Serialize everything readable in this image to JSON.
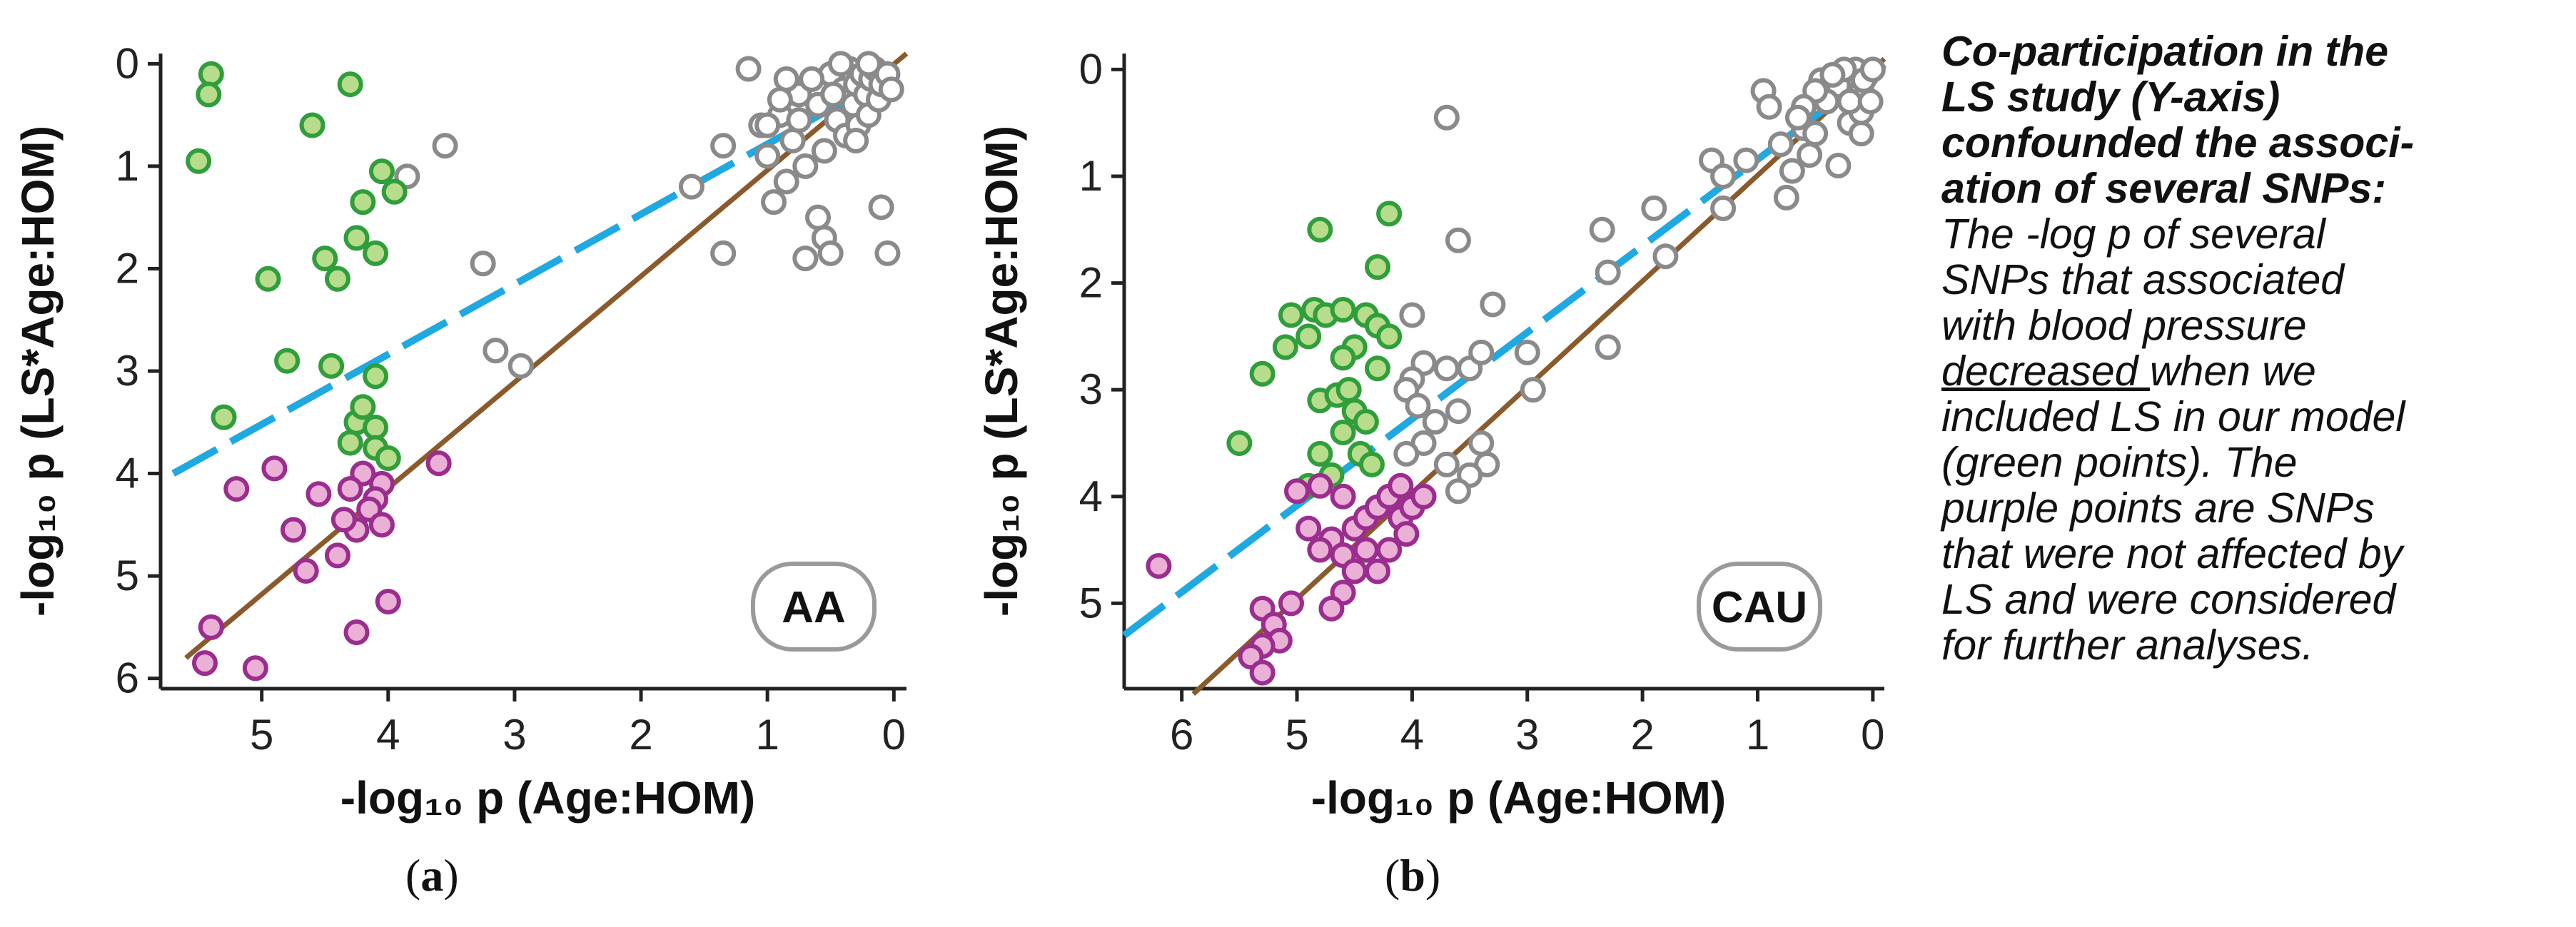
{
  "colors": {
    "green_fill": "#b6dc8c",
    "green_stroke": "#2f9e3b",
    "purple_fill": "#eab0d6",
    "purple_stroke": "#9b2d8e",
    "gray_stroke": "#8a8a8a",
    "identity_line": "#8b5a2b",
    "fit_line": "#1fa9e1"
  },
  "chart_data": [
    {
      "type": "scatter",
      "panel_label": "(a)",
      "panel_letter": "a",
      "badge": "AA",
      "xlabel": "-log₁₀ p (Age:HOM)",
      "ylabel": "-log₁₀ p (LS*Age:HOM)",
      "xlim": [
        5.8,
        -0.1
      ],
      "ylim": [
        6.1,
        -0.1
      ],
      "x_ticks": [
        5,
        4,
        3,
        2,
        1,
        0
      ],
      "y_ticks": [
        0,
        1,
        2,
        3,
        4,
        5,
        6
      ],
      "lines": [
        {
          "name": "identity",
          "points": [
            [
              5.6,
              5.8
            ],
            [
              -0.1,
              -0.1
            ]
          ]
        },
        {
          "name": "fit",
          "points": [
            [
              5.7,
              4.0
            ],
            [
              0.0,
              0.1
            ]
          ]
        }
      ],
      "series": [
        {
          "name": "green",
          "points": [
            [
              5.4,
              0.1
            ],
            [
              5.42,
              0.3
            ],
            [
              5.5,
              0.95
            ],
            [
              4.6,
              0.6
            ],
            [
              4.3,
              0.2
            ],
            [
              4.05,
              1.05
            ],
            [
              3.95,
              1.25
            ],
            [
              4.2,
              1.35
            ],
            [
              4.25,
              1.7
            ],
            [
              4.1,
              1.85
            ],
            [
              4.5,
              1.9
            ],
            [
              4.4,
              2.1
            ],
            [
              4.95,
              2.1
            ],
            [
              5.3,
              3.45
            ],
            [
              4.8,
              2.9
            ],
            [
              4.45,
              2.95
            ],
            [
              4.1,
              3.05
            ],
            [
              4.25,
              3.5
            ],
            [
              4.2,
              3.35
            ],
            [
              4.1,
              3.55
            ],
            [
              4.3,
              3.7
            ],
            [
              4.1,
              3.75
            ],
            [
              4.0,
              3.85
            ]
          ]
        },
        {
          "name": "purple",
          "points": [
            [
              4.2,
              4.0
            ],
            [
              4.05,
              4.1
            ],
            [
              4.1,
              4.25
            ],
            [
              4.3,
              4.15
            ],
            [
              4.15,
              4.35
            ],
            [
              4.25,
              4.55
            ],
            [
              4.05,
              4.5
            ],
            [
              4.35,
              4.45
            ],
            [
              4.55,
              4.2
            ],
            [
              4.9,
              3.95
            ],
            [
              5.2,
              4.15
            ],
            [
              4.75,
              4.55
            ],
            [
              4.4,
              4.8
            ],
            [
              4.65,
              4.95
            ],
            [
              3.6,
              3.9
            ],
            [
              4.0,
              5.25
            ],
            [
              4.25,
              5.55
            ],
            [
              5.4,
              5.5
            ],
            [
              5.45,
              5.85
            ],
            [
              5.05,
              5.9
            ]
          ]
        },
        {
          "name": "gray",
          "points": [
            [
              3.85,
              1.1
            ],
            [
              3.55,
              0.8
            ],
            [
              3.25,
              1.95
            ],
            [
              3.15,
              2.8
            ],
            [
              2.95,
              2.95
            ],
            [
              1.6,
              1.2
            ],
            [
              1.35,
              0.8
            ],
            [
              1.0,
              0.9
            ],
            [
              1.35,
              1.85
            ],
            [
              0.9,
              0.5
            ],
            [
              0.75,
              0.3
            ],
            [
              0.6,
              1.5
            ],
            [
              0.55,
              1.7
            ],
            [
              0.5,
              1.85
            ],
            [
              0.7,
              1.9
            ],
            [
              0.05,
              1.85
            ],
            [
              0.1,
              1.4
            ],
            [
              1.15,
              0.05
            ],
            [
              1.05,
              0.6
            ],
            [
              0.85,
              0.15
            ],
            [
              0.8,
              0.75
            ],
            [
              0.7,
              1.0
            ],
            [
              0.6,
              0.4
            ],
            [
              0.55,
              0.85
            ],
            [
              0.5,
              0.1
            ],
            [
              0.45,
              0.55
            ],
            [
              0.4,
              0.25
            ],
            [
              0.38,
              0.7
            ],
            [
              0.35,
              0.05
            ],
            [
              0.32,
              0.4
            ],
            [
              0.3,
              0.2
            ],
            [
              0.28,
              0.6
            ],
            [
              0.25,
              0.1
            ],
            [
              0.22,
              0.3
            ],
            [
              0.2,
              0.5
            ],
            [
              0.18,
              0.15
            ],
            [
              0.15,
              0.05
            ],
            [
              0.12,
              0.35
            ],
            [
              0.1,
              0.2
            ],
            [
              0.05,
              0.1
            ],
            [
              0.02,
              0.25
            ],
            [
              0.65,
              0.15
            ],
            [
              0.48,
              0.3
            ],
            [
              0.42,
              0.0
            ],
            [
              0.2,
              0.0
            ],
            [
              0.3,
              0.75
            ],
            [
              0.9,
              0.35
            ],
            [
              1.0,
              0.6
            ],
            [
              0.75,
              0.55
            ],
            [
              0.85,
              1.15
            ],
            [
              0.95,
              1.35
            ]
          ]
        }
      ]
    },
    {
      "type": "scatter",
      "panel_label": "(b)",
      "panel_letter": "b",
      "badge": "CAU",
      "xlabel": "-log₁₀ p (Age:HOM)",
      "ylabel": "-log₁₀ p (LS*Age:HOM)",
      "xlim": [
        6.5,
        -0.1
      ],
      "ylim": [
        5.8,
        -0.15
      ],
      "x_ticks": [
        6,
        5,
        4,
        3,
        2,
        1,
        0
      ],
      "y_ticks": [
        0,
        1,
        2,
        3,
        4,
        5
      ],
      "lines": [
        {
          "name": "identity",
          "points": [
            [
              5.9,
              5.85
            ],
            [
              -0.1,
              -0.1
            ]
          ]
        },
        {
          "name": "fit",
          "points": [
            [
              6.5,
              5.3
            ],
            [
              -0.1,
              -0.05
            ]
          ]
        }
      ],
      "series": [
        {
          "name": "green",
          "points": [
            [
              4.8,
              1.5
            ],
            [
              4.2,
              1.35
            ],
            [
              4.3,
              1.85
            ],
            [
              4.85,
              2.25
            ],
            [
              4.75,
              2.3
            ],
            [
              5.05,
              2.3
            ],
            [
              4.6,
              2.25
            ],
            [
              4.4,
              2.3
            ],
            [
              4.3,
              2.4
            ],
            [
              4.2,
              2.5
            ],
            [
              4.5,
              2.6
            ],
            [
              4.6,
              2.7
            ],
            [
              4.9,
              2.5
            ],
            [
              5.1,
              2.6
            ],
            [
              5.3,
              2.85
            ],
            [
              4.8,
              3.1
            ],
            [
              4.65,
              3.05
            ],
            [
              4.5,
              3.2
            ],
            [
              4.4,
              3.3
            ],
            [
              4.6,
              3.4
            ],
            [
              5.5,
              3.5
            ],
            [
              4.8,
              3.6
            ],
            [
              4.9,
              3.9
            ],
            [
              4.7,
              3.8
            ],
            [
              4.45,
              3.6
            ],
            [
              4.35,
              3.7
            ],
            [
              4.55,
              3.0
            ],
            [
              4.3,
              2.8
            ]
          ]
        },
        {
          "name": "purple",
          "points": [
            [
              6.2,
              4.65
            ],
            [
              5.3,
              5.05
            ],
            [
              5.2,
              5.2
            ],
            [
              5.05,
              5.0
            ],
            [
              5.15,
              5.35
            ],
            [
              5.3,
              5.4
            ],
            [
              5.4,
              5.5
            ],
            [
              5.3,
              5.65
            ],
            [
              5.0,
              3.95
            ],
            [
              4.8,
              3.9
            ],
            [
              4.6,
              4.0
            ],
            [
              4.9,
              4.3
            ],
            [
              4.7,
              4.4
            ],
            [
              4.6,
              4.55
            ],
            [
              4.5,
              4.3
            ],
            [
              4.4,
              4.2
            ],
            [
              4.3,
              4.1
            ],
            [
              4.2,
              4.0
            ],
            [
              4.1,
              4.2
            ],
            [
              4.0,
              4.1
            ],
            [
              3.9,
              4.0
            ],
            [
              4.1,
              3.9
            ],
            [
              4.5,
              4.7
            ],
            [
              4.6,
              4.9
            ],
            [
              4.7,
              5.05
            ],
            [
              4.3,
              4.7
            ],
            [
              4.2,
              4.5
            ],
            [
              4.4,
              4.5
            ],
            [
              4.8,
              4.5
            ],
            [
              4.05,
              4.35
            ]
          ]
        },
        {
          "name": "gray",
          "points": [
            [
              3.7,
              0.45
            ],
            [
              4.0,
              2.3
            ],
            [
              3.6,
              1.6
            ],
            [
              3.3,
              2.2
            ],
            [
              3.5,
              2.8
            ],
            [
              3.7,
              2.8
            ],
            [
              3.9,
              2.75
            ],
            [
              4.0,
              2.9
            ],
            [
              4.05,
              3.0
            ],
            [
              3.95,
              3.15
            ],
            [
              3.8,
              3.3
            ],
            [
              3.6,
              3.2
            ],
            [
              3.4,
              3.5
            ],
            [
              3.35,
              3.7
            ],
            [
              3.5,
              3.8
            ],
            [
              3.7,
              3.7
            ],
            [
              3.9,
              3.5
            ],
            [
              4.05,
              3.6
            ],
            [
              3.6,
              3.95
            ],
            [
              3.4,
              2.65
            ],
            [
              3.0,
              2.65
            ],
            [
              2.95,
              3.0
            ],
            [
              2.35,
              1.5
            ],
            [
              2.3,
              1.9
            ],
            [
              2.3,
              2.6
            ],
            [
              1.9,
              1.3
            ],
            [
              1.8,
              1.75
            ],
            [
              1.4,
              0.85
            ],
            [
              1.3,
              1.0
            ],
            [
              1.3,
              1.3
            ],
            [
              1.1,
              0.85
            ],
            [
              0.95,
              0.2
            ],
            [
              0.9,
              0.35
            ],
            [
              0.8,
              0.7
            ],
            [
              0.75,
              1.2
            ],
            [
              0.7,
              0.95
            ],
            [
              0.6,
              0.55
            ],
            [
              0.5,
              0.6
            ],
            [
              0.45,
              0.1
            ],
            [
              0.3,
              0.9
            ],
            [
              0.2,
              0.5
            ],
            [
              0.1,
              0.6
            ],
            [
              0.1,
              0.2
            ],
            [
              0.05,
              0.05
            ],
            [
              0.15,
              0.0
            ],
            [
              0.3,
              0.15
            ],
            [
              0.25,
              0.0
            ],
            [
              0.35,
              0.05
            ],
            [
              0.1,
              0.4
            ],
            [
              0.2,
              0.3
            ],
            [
              0.4,
              0.3
            ],
            [
              0.5,
              0.2
            ],
            [
              0.6,
              0.35
            ],
            [
              0.55,
              0.8
            ],
            [
              0.65,
              0.45
            ],
            [
              0.02,
              0.3
            ],
            [
              0.08,
              0.1
            ],
            [
              0.0,
              0.0
            ]
          ]
        }
      ]
    }
  ],
  "note": {
    "bold_line1": "Co-participation in the",
    "bold_line2": "LS study (Y-axis)",
    "bold_line3": "confounded the associ-",
    "bold_line4": "ation of several SNPs:",
    "line5": "The -log p of several",
    "line6": "SNPs that associated",
    "line7": "with blood pressure",
    "line8_u": "decreased ",
    "line8_rest": "when we",
    "line9": "included LS in our model",
    "line10": "(green points). The",
    "line11": "purple points are SNPs",
    "line12": "that were not affected by",
    "line13": "LS and were considered",
    "line14": "for further analyses."
  }
}
